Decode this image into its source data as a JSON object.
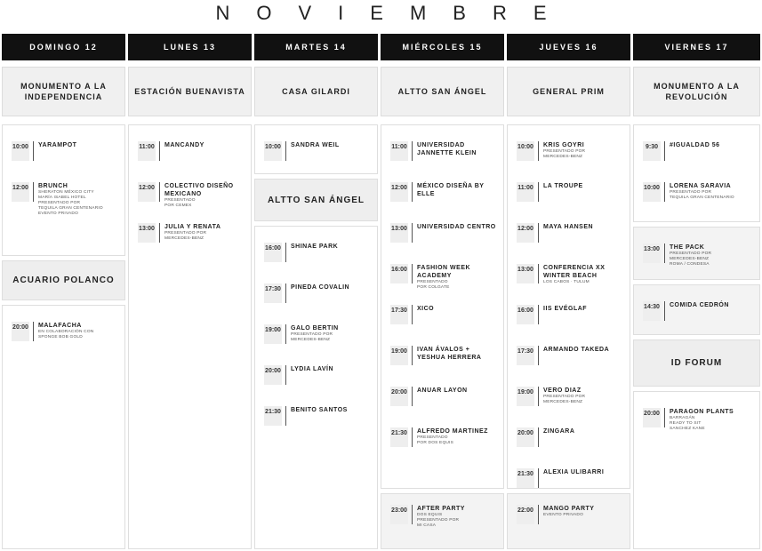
{
  "title": "NOVIEMBRE",
  "columns": [
    {
      "day": "DOMINGO 12",
      "venue": "MONUMENTO A LA INDEPENDENCIA",
      "blocks": [
        {
          "events": [
            {
              "time": "10:00",
              "name": "YARAMPOT"
            },
            {
              "time": "12:00",
              "name": "BRUNCH",
              "notes": [
                "SHERATON MÉXICO CITY",
                "MARÍA ISABEL HOTEL",
                "PRESENTADO POR",
                "TEQUILA GRAN CENTENARIO",
                "EVENTO PRIVADO"
              ]
            }
          ]
        },
        {
          "venue": "ACUARIO POLANCO"
        },
        {
          "events": [
            {
              "time": "20:00",
              "name": "MALAFACHA",
              "notes": [
                "EN COLABORACIÓN CON",
                "SPONGE BOB GOLD"
              ]
            }
          ]
        }
      ]
    },
    {
      "day": "LUNES 13",
      "venue": "ESTACIÓN BUENAVISTA",
      "blocks": [
        {
          "events": [
            {
              "time": "11:00",
              "name": "MANCANDY"
            },
            {
              "time": "12:00",
              "name": "COLECTIVO DISEÑO MEXICANO",
              "notes": [
                "PRESENTADO",
                "POR CEMEX"
              ]
            },
            {
              "time": "13:00",
              "name": "JULIA Y RENATA",
              "notes": [
                "PRESENTADO POR",
                "MERCEDES-BENZ"
              ]
            }
          ]
        }
      ]
    },
    {
      "day": "MARTES 14",
      "venue": "CASA GILARDI",
      "blocks": [
        {
          "events": [
            {
              "time": "10:00",
              "name": "SANDRA WEIL"
            }
          ]
        },
        {
          "venue": "ALTTO SAN ÁNGEL"
        },
        {
          "events": [
            {
              "time": "16:00",
              "name": "SHINAE PARK"
            },
            {
              "time": "17:30",
              "name": "PINEDA COVALIN"
            },
            {
              "time": "19:00",
              "name": "GALO BERTIN",
              "notes": [
                "PRESENTADO POR",
                "MERCEDES-BENZ"
              ]
            },
            {
              "time": "20:00",
              "name": "LYDIA LAVÍN"
            },
            {
              "time": "21:30",
              "name": "BENITO SANTOS"
            }
          ]
        }
      ]
    },
    {
      "day": "MIÉRCOLES 15",
      "venue": "ALTTO SAN ÁNGEL",
      "blocks": [
        {
          "events": [
            {
              "time": "11:00",
              "name": "UNIVERSIDAD JANNETTE KLEIN"
            },
            {
              "time": "12:00",
              "name": "MÉXICO DISEÑA BY ELLE"
            },
            {
              "time": "13:00",
              "name": "UNIVERSIDAD CENTRO"
            },
            {
              "time": "16:00",
              "name": "FASHION WEEK ACADEMY",
              "notes": [
                "PRESENTADO",
                "POR COLGATE"
              ]
            },
            {
              "time": "17:30",
              "name": "XICO"
            },
            {
              "time": "19:00",
              "name": "IVAN ÁVALOS + YESHUA HERRERA"
            },
            {
              "time": "20:00",
              "name": "ANUAR LAYON"
            },
            {
              "time": "21:30",
              "name": "ALFREDO MARTINEZ",
              "notes": [
                "PRESENTADO",
                "POR DOS EQUIS"
              ]
            }
          ]
        },
        {
          "events": [
            {
              "time": "23:00",
              "name": "AFTER PARTY",
              "notes": [
                "DOS EQUIS",
                "PRESENTADO POR",
                "MI CASA"
              ]
            }
          ]
        }
      ]
    },
    {
      "day": "JUEVES 16",
      "venue": "GENERAL PRIM",
      "blocks": [
        {
          "events": [
            {
              "time": "10:00",
              "name": "KRIS GOYRI",
              "notes": [
                "PRESENTADO POR",
                "MERCEDES-BENZ"
              ]
            },
            {
              "time": "11:00",
              "name": "LA TROUPE"
            },
            {
              "time": "12:00",
              "name": "MAYA HANSEN"
            },
            {
              "time": "13:00",
              "name": "CONFERENCIA XX WINTER BEACH",
              "notes": [
                "LOS CABOS · TULUM"
              ]
            },
            {
              "time": "16:00",
              "name": "IIS EVÉGLAF"
            },
            {
              "time": "17:30",
              "name": "ARMANDO TAKEDA"
            },
            {
              "time": "19:00",
              "name": "VERO DIAZ",
              "notes": [
                "PRESENTADO POR",
                "MERCEDES-BENZ"
              ]
            },
            {
              "time": "20:00",
              "name": "ZINGARA"
            },
            {
              "time": "21:30",
              "name": "ALEXIA ULIBARRI"
            }
          ]
        },
        {
          "events": [
            {
              "time": "22:00",
              "name": "MANGO PARTY",
              "notes": [
                "EVENTO PRIVADO"
              ]
            }
          ]
        }
      ]
    },
    {
      "day": "VIERNES 17",
      "venue": "MONUMENTO A LA REVOLUCIÓN",
      "blocks": [
        {
          "events": [
            {
              "time": "9:30",
              "name": "#IGUALDAD 56"
            },
            {
              "time": "10:00",
              "name": "LORENA SARAVIA",
              "notes": [
                "PRESENTADO POR",
                "TEQUILA GRAN CENTENARIO"
              ]
            }
          ]
        },
        {
          "events": [
            {
              "time": "13:00",
              "name": "THE PACK",
              "notes": [
                "PRESENTADO POR",
                "MERCEDES-BENZ",
                "ROMA / CONDESA"
              ]
            }
          ]
        },
        {
          "events": [
            {
              "time": "14:30",
              "name": "COMIDA CEDRÓN"
            }
          ]
        },
        {
          "venue": "ID FORUM"
        },
        {
          "events": [
            {
              "time": "20:00",
              "name": "PARAGON PLANTS",
              "notes": [
                "BARRAGÁN",
                "READY TO SIT",
                "SANCHEZ KANE"
              ]
            }
          ]
        }
      ]
    }
  ]
}
